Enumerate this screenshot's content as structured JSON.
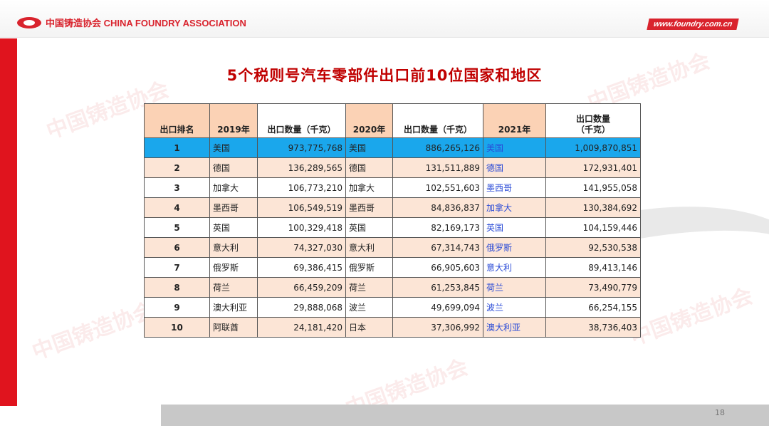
{
  "header": {
    "org_name": "中国铸造协会 CHINA FOUNDRY ASSOCIATION",
    "website": "www.foundry.com.cn"
  },
  "watermark": "中国铸造协会",
  "title": "5个税则号汽车零部件出口前10位国家和地区",
  "table": {
    "headers": [
      "出口排名",
      "2019年",
      "出口数量（千克）",
      "2020年",
      "出口数量（千克）",
      "2021年",
      "出口数量\n（千克）"
    ],
    "rows": [
      [
        "1",
        "美国",
        "973,775,768",
        "美国",
        "886,265,126",
        "美国",
        "1,009,870,851"
      ],
      [
        "2",
        "德国",
        "136,289,565",
        "德国",
        "131,511,889",
        "德国",
        "172,931,401"
      ],
      [
        "3",
        "加拿大",
        "106,773,210",
        "加拿大",
        "102,551,603",
        "墨西哥",
        "141,955,058"
      ],
      [
        "4",
        "墨西哥",
        "106,549,519",
        "墨西哥",
        "84,836,837",
        "加拿大",
        "130,384,692"
      ],
      [
        "5",
        "英国",
        "100,329,418",
        "英国",
        "82,169,173",
        "英国",
        "104,159,446"
      ],
      [
        "6",
        "意大利",
        "74,327,030",
        "意大利",
        "67,314,743",
        "俄罗斯",
        "92,530,538"
      ],
      [
        "7",
        "俄罗斯",
        "69,386,415",
        "俄罗斯",
        "66,905,603",
        "意大利",
        "89,413,146"
      ],
      [
        "8",
        "荷兰",
        "66,459,209",
        "荷兰",
        "61,253,845",
        "荷兰",
        "73,490,779"
      ],
      [
        "9",
        "澳大利亚",
        "29,888,068",
        "波兰",
        "49,699,094",
        "波兰",
        "66,254,155"
      ],
      [
        "10",
        "阿联酋",
        "24,181,420",
        "日本",
        "37,306,992",
        "澳大利亚",
        "38,736,403"
      ]
    ]
  },
  "page_number": "18",
  "colors": {
    "brand_red": "#d9232d",
    "title_red": "#c00000",
    "header_fill": "#fbd2b5",
    "highlight_row": "#1aa7ec",
    "alt_row": "#fce5d6",
    "country_2021_text": "#2a4bd7"
  }
}
